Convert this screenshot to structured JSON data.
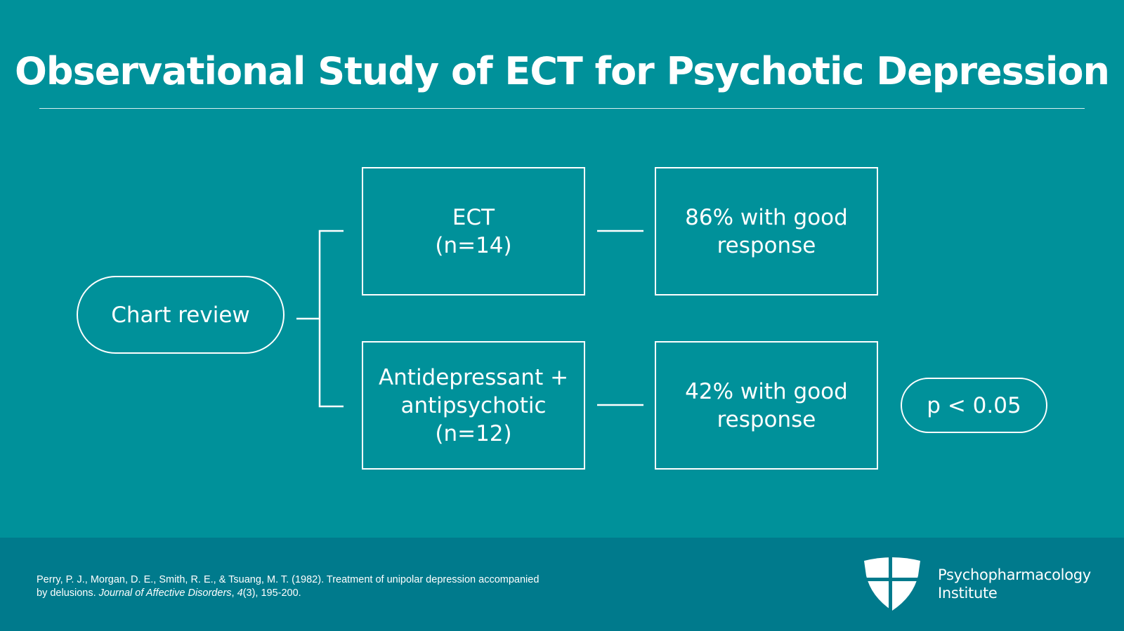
{
  "slide": {
    "title": "Observational Study of ECT for Psychotic Depression"
  },
  "diagram": {
    "source": "Chart review",
    "branches": [
      {
        "group": "ECT\n(n=14)",
        "result": "86% with good\nresponse"
      },
      {
        "group": "Antidepressant +\nantipsychotic\n(n=12)",
        "result": "42% with good\nresponse"
      }
    ],
    "significance": "p < 0.05"
  },
  "footer": {
    "citation_authors": "Perry, P. J., Morgan, D. E., Smith, R. E., & Tsuang, M. T. (1982). Treatment of unipolar depression accompanied by delusions. ",
    "citation_journal": "Journal of Affective Disorders",
    "citation_sep": ", ",
    "citation_volume": "4",
    "citation_rest": "(3), 195-200.",
    "logo_line1": "Psychopharmacology",
    "logo_line2": "Institute"
  },
  "colors": {
    "background": "#00919A",
    "footer": "#007A8C",
    "foreground": "#FFFFFF"
  }
}
